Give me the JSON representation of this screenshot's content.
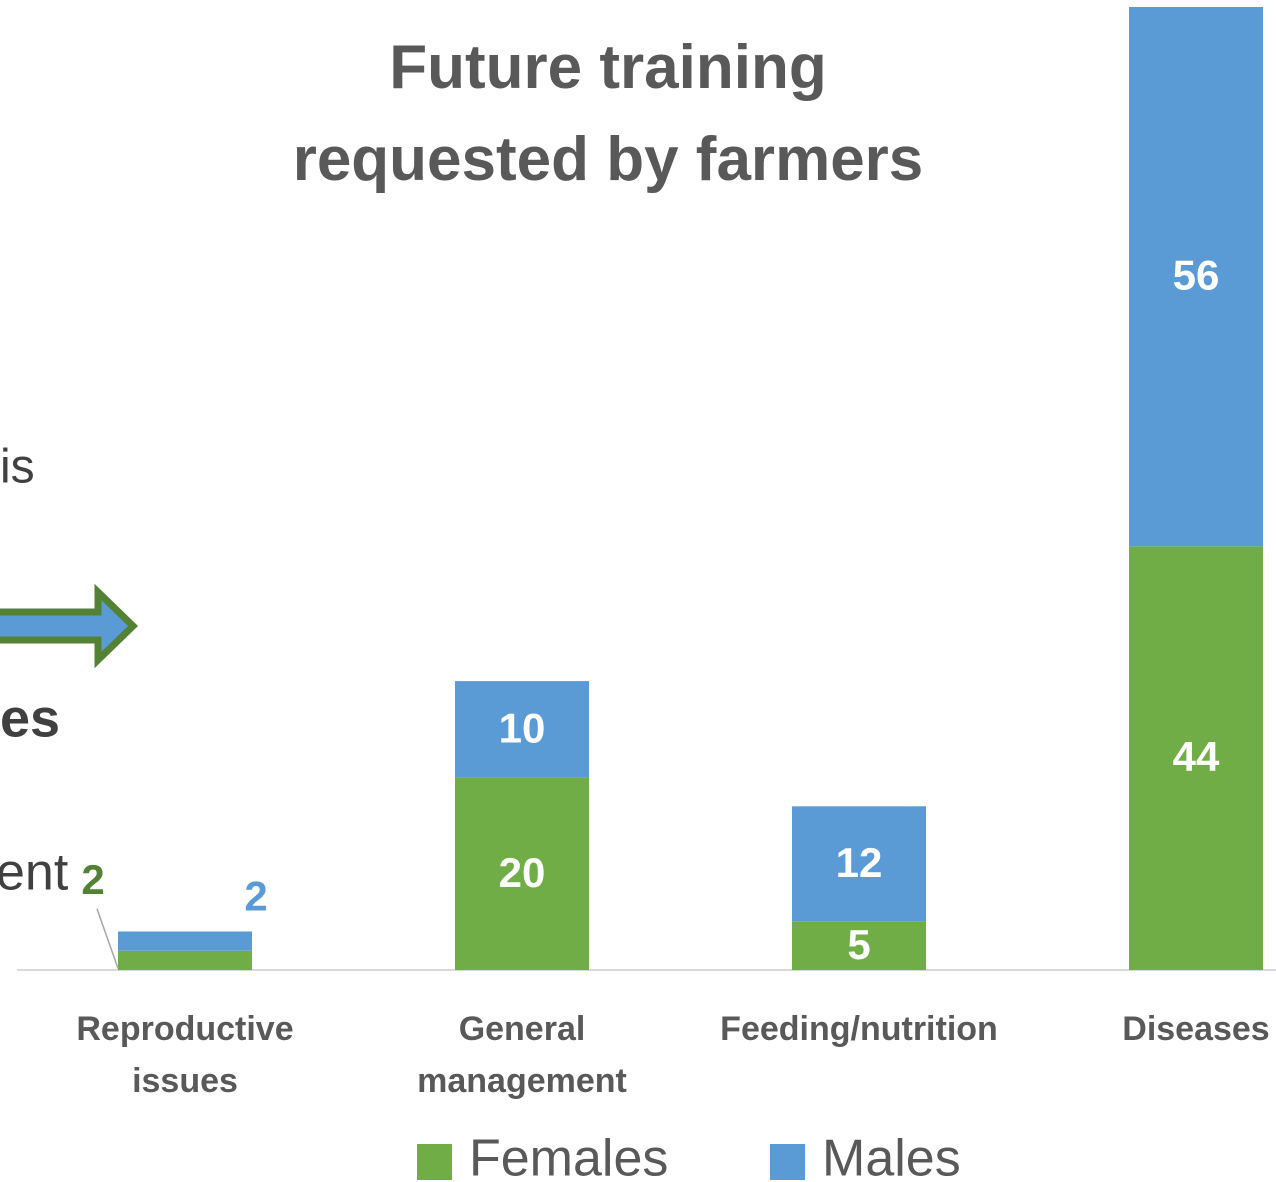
{
  "chart_data": {
    "type": "stacked_bar",
    "title": "Future training requested by farmers",
    "categories": [
      "Reproductive issues",
      "General management",
      "Feeding/nutrition",
      "Diseases"
    ],
    "series": [
      {
        "name": "Females",
        "color": "#70ad47",
        "values": [
          2,
          20,
          5,
          44
        ]
      },
      {
        "name": "Males",
        "color": "#5b9bd5",
        "values": [
          2,
          10,
          12,
          56
        ]
      }
    ],
    "ylim": [
      0,
      100
    ],
    "annotations": [
      "is",
      "es",
      "ent"
    ]
  }
}
